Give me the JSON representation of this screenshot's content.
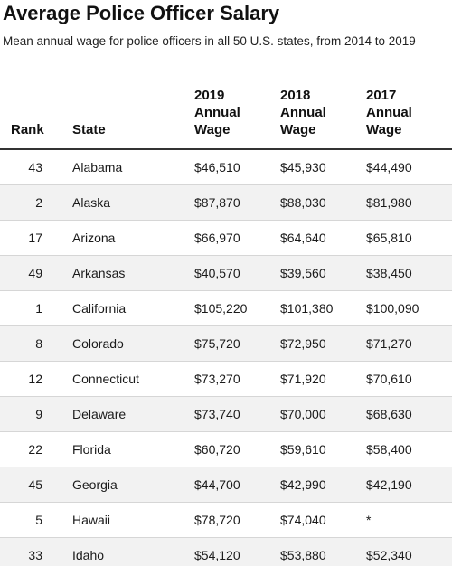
{
  "title": "Average Police Officer Salary",
  "subtitle": "Mean annual wage for police officers in all 50 U.S. states, from 2014 to 2019",
  "table": {
    "headers": {
      "rank": [
        "Rank"
      ],
      "state": [
        "State"
      ],
      "y2019": [
        "2019",
        "Annual",
        "Wage"
      ],
      "y2018": [
        "2018",
        "Annual",
        "Wage"
      ],
      "y2017": [
        "2017",
        "Annual",
        "Wage"
      ]
    },
    "rows": [
      {
        "rank": "43",
        "state": "Alabama",
        "y2019": "$46,510",
        "y2018": "$45,930",
        "y2017": "$44,490"
      },
      {
        "rank": "2",
        "state": "Alaska",
        "y2019": "$87,870",
        "y2018": "$88,030",
        "y2017": "$81,980"
      },
      {
        "rank": "17",
        "state": "Arizona",
        "y2019": "$66,970",
        "y2018": "$64,640",
        "y2017": "$65,810"
      },
      {
        "rank": "49",
        "state": "Arkansas",
        "y2019": "$40,570",
        "y2018": "$39,560",
        "y2017": "$38,450"
      },
      {
        "rank": "1",
        "state": "California",
        "y2019": "$105,220",
        "y2018": "$101,380",
        "y2017": "$100,090"
      },
      {
        "rank": "8",
        "state": "Colorado",
        "y2019": "$75,720",
        "y2018": "$72,950",
        "y2017": "$71,270"
      },
      {
        "rank": "12",
        "state": "Connecticut",
        "y2019": "$73,270",
        "y2018": "$71,920",
        "y2017": "$70,610"
      },
      {
        "rank": "9",
        "state": "Delaware",
        "y2019": "$73,740",
        "y2018": "$70,000",
        "y2017": "$68,630"
      },
      {
        "rank": "22",
        "state": "Florida",
        "y2019": "$60,720",
        "y2018": "$59,610",
        "y2017": "$58,400"
      },
      {
        "rank": "45",
        "state": "Georgia",
        "y2019": "$44,700",
        "y2018": "$42,990",
        "y2017": "$42,190"
      },
      {
        "rank": "5",
        "state": "Hawaii",
        "y2019": "$78,720",
        "y2018": "$74,040",
        "y2017": "*"
      },
      {
        "rank": "33",
        "state": "Idaho",
        "y2019": "$54,120",
        "y2018": "$53,880",
        "y2017": "$52,340"
      }
    ]
  }
}
